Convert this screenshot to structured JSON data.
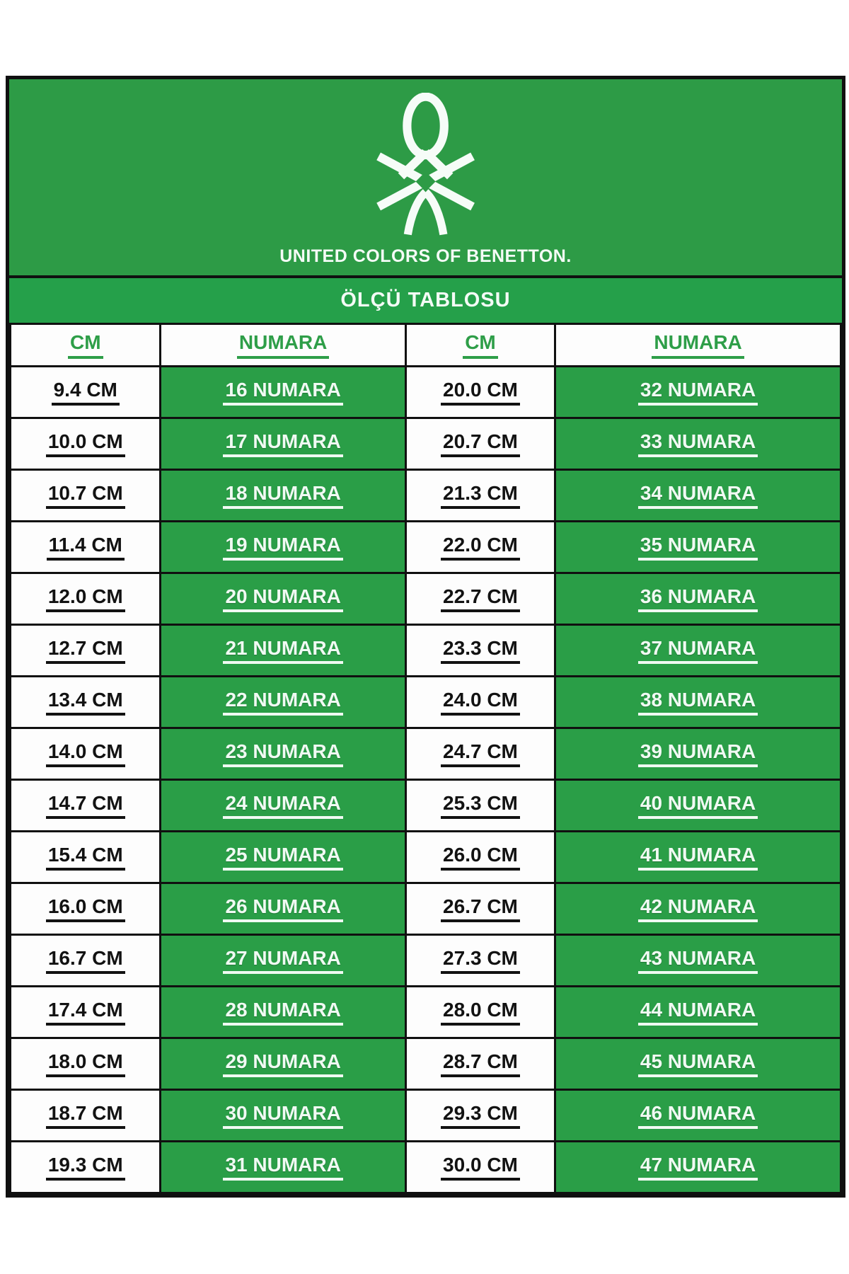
{
  "brand": {
    "logo_icon": "benetton-knot-icon",
    "wordmark": "UNITED COLORS OF BENETTON."
  },
  "banner": {
    "title": "ÖLÇÜ TABLOSU"
  },
  "table": {
    "headers": [
      "CM",
      "NUMARA",
      "CM",
      "NUMARA"
    ],
    "rows": [
      [
        "9.4 CM",
        "16 NUMARA",
        "20.0 CM",
        "32 NUMARA"
      ],
      [
        "10.0 CM",
        "17 NUMARA",
        "20.7 CM",
        "33 NUMARA"
      ],
      [
        "10.7 CM",
        "18 NUMARA",
        "21.3 CM",
        "34 NUMARA"
      ],
      [
        "11.4 CM",
        "19 NUMARA",
        "22.0 CM",
        "35 NUMARA"
      ],
      [
        "12.0 CM",
        "20 NUMARA",
        "22.7 CM",
        "36 NUMARA"
      ],
      [
        "12.7 CM",
        "21 NUMARA",
        "23.3 CM",
        "37 NUMARA"
      ],
      [
        "13.4 CM",
        "22 NUMARA",
        "24.0 CM",
        "38 NUMARA"
      ],
      [
        "14.0 CM",
        "23 NUMARA",
        "24.7 CM",
        "39 NUMARA"
      ],
      [
        "14.7 CM",
        "24 NUMARA",
        "25.3 CM",
        "40 NUMARA"
      ],
      [
        "15.4 CM",
        "25 NUMARA",
        "26.0 CM",
        "41 NUMARA"
      ],
      [
        "16.0 CM",
        "26 NUMARA",
        "26.7 CM",
        "42 NUMARA"
      ],
      [
        "16.7 CM",
        "27 NUMARA",
        "27.3 CM",
        "43 NUMARA"
      ],
      [
        "17.4 CM",
        "28 NUMARA",
        "28.0 CM",
        "44 NUMARA"
      ],
      [
        "18.0 CM",
        "29 NUMARA",
        "28.7 CM",
        "45 NUMARA"
      ],
      [
        "18.7 CM",
        "30 NUMARA",
        "29.3 CM",
        "46 NUMARA"
      ],
      [
        "19.3 CM",
        "31 NUMARA",
        "30.0 CM",
        "47 NUMARA"
      ]
    ]
  },
  "colors": {
    "brand_green": "#2d9b46",
    "banner_green": "#25a04a",
    "cell_green": "#2a9e47",
    "border_black": "#101010",
    "header_text": "#2e9e48",
    "cm_text": "#121212",
    "numara_text": "#f0faf3"
  }
}
